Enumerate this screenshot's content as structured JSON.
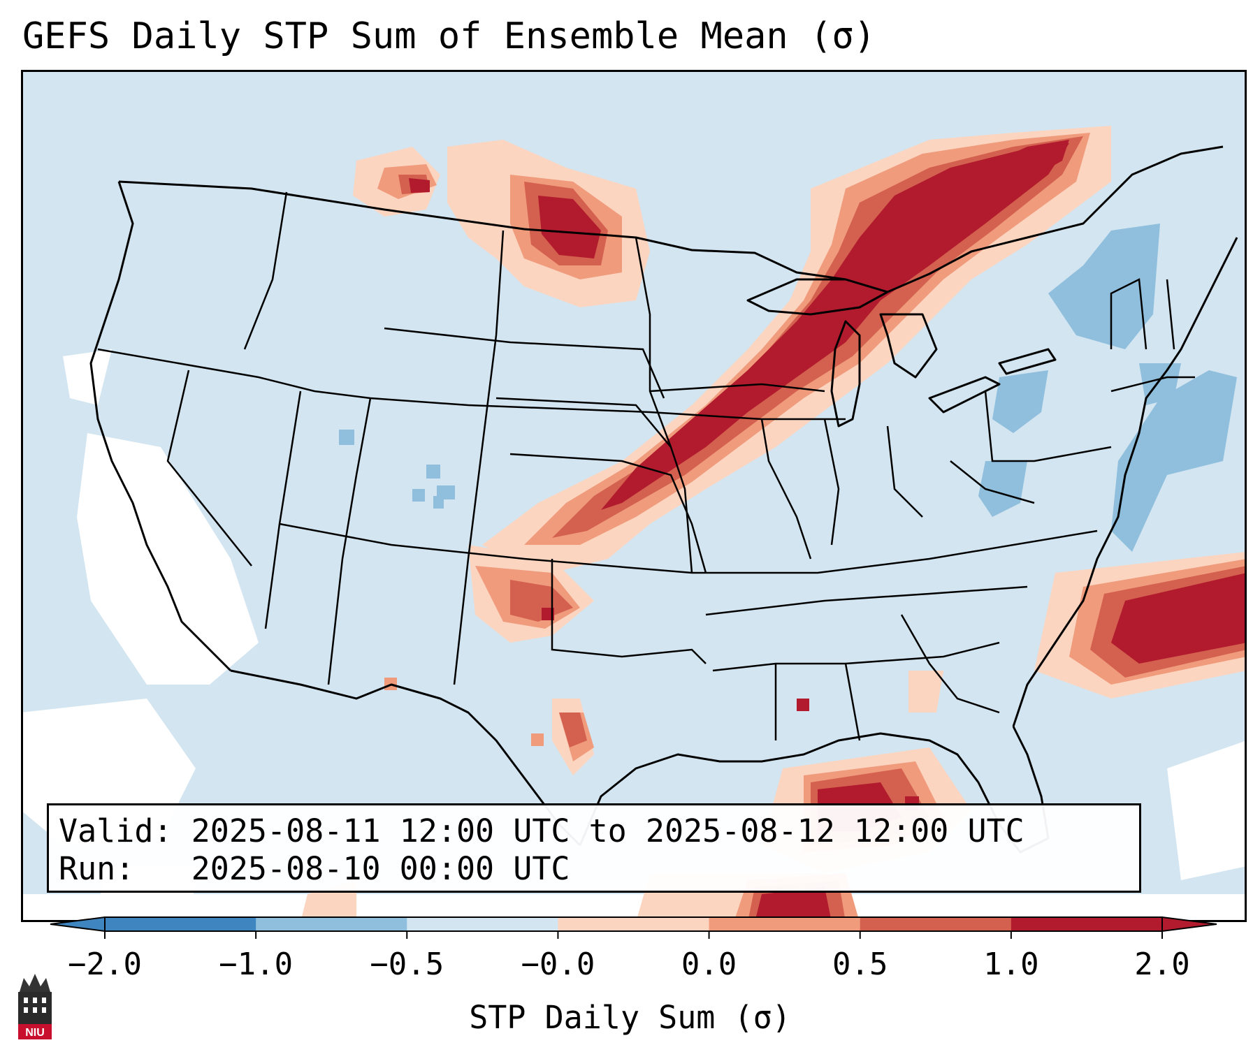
{
  "title": "GEFS Daily STP Sum of Ensemble Mean (σ)",
  "info": {
    "valid_label": "Valid:",
    "valid_value": "2025-08-11 12:00 UTC to 2025-08-12 12:00 UTC",
    "run_label": "Run:",
    "run_value": "2025-08-10 00:00 UTC"
  },
  "colorbar": {
    "label": "STP Daily Sum (σ)",
    "ticks": [
      "−2.0",
      "−1.0",
      "−0.5",
      "−0.0",
      "0.0",
      "0.5",
      "1.0",
      "2.0"
    ],
    "colors": [
      "#3f86c1",
      "#8fbfdd",
      "#d2e5f0",
      "#f7f7f7",
      "#fcd5c1",
      "#ef9b7c",
      "#d4604f",
      "#b11b2d"
    ],
    "under_color": "#3f86c1",
    "over_color": "#b11b2d"
  },
  "map": {
    "region": "Continental United States",
    "background_anomaly_color": "#d2e5f0",
    "land_outline_color": "#000000"
  },
  "logo": {
    "text": "NIU",
    "color": "#c8102e"
  }
}
